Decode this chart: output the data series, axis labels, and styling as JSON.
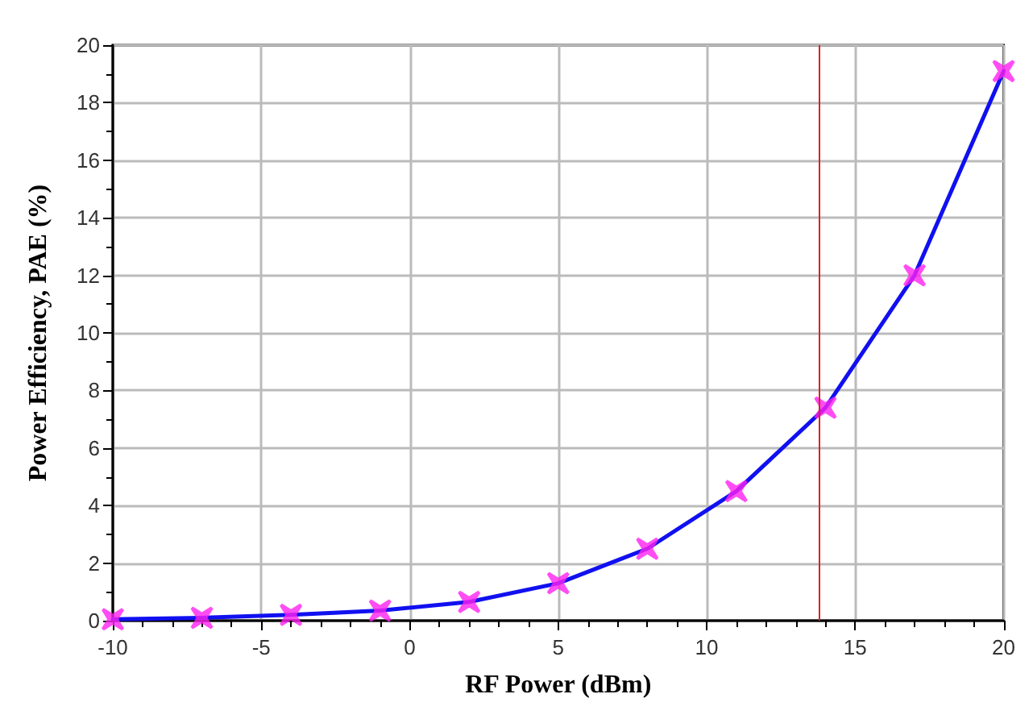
{
  "chart_data": {
    "type": "line",
    "xlabel": "RF Power (dBm)",
    "ylabel": "Power Efficiency, PAE (%)",
    "x": [
      -10,
      -7,
      -4,
      -1,
      2,
      5,
      8,
      11,
      14,
      17,
      20
    ],
    "series": [
      {
        "color": "#1010f0",
        "marker": "none",
        "values": [
          0.05,
          0.1,
          0.2,
          0.35,
          0.65,
          1.3,
          2.5,
          4.5,
          7.4,
          12,
          19.1
        ]
      },
      {
        "type": "scatter",
        "color": "#ff20f0",
        "marker": "cross",
        "values": [
          0.05,
          0.1,
          0.2,
          0.35,
          0.65,
          1.3,
          2.5,
          4.5,
          7.4,
          12,
          19.1
        ]
      }
    ],
    "xlim": [
      -10,
      20
    ],
    "xticks": [
      -10,
      -5,
      0,
      5,
      10,
      15,
      20
    ],
    "ylim": [
      0,
      20
    ],
    "yticks": [
      0,
      2,
      4,
      6,
      8,
      10,
      12,
      14,
      16,
      18,
      20
    ],
    "grid": true,
    "line_style": "solid",
    "ref_lines": [
      {
        "axis": "x",
        "value": 13.8,
        "color": "#e02020"
      }
    ]
  }
}
